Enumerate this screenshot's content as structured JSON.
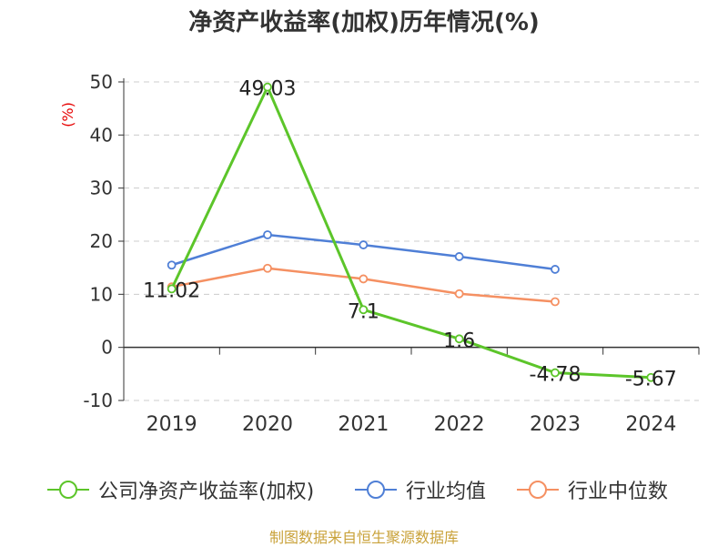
{
  "title": "净资产收益率(加权)历年情况(%)",
  "source": "制图数据来自恒生聚源数据库",
  "colors": {
    "company": "#5cc52a",
    "industry_avg": "#4f7fd6",
    "industry_median": "#f59062",
    "grid": "#cccccc",
    "axis": "#333333",
    "ylabel": "#e60000"
  },
  "chart_data": {
    "type": "line",
    "ylabel": "(%)",
    "xlabel": "",
    "ylim": [
      -10,
      50
    ],
    "yticks": [
      -10,
      0,
      10,
      20,
      30,
      40,
      50
    ],
    "categories": [
      "2019",
      "2020",
      "2021",
      "2022",
      "2023",
      "2024"
    ],
    "grid": true,
    "legend_position": "bottom",
    "series": [
      {
        "name": "公司净资产收益率(加权)",
        "color_key": "company",
        "values": [
          11.02,
          49.03,
          7.1,
          1.6,
          -4.78,
          -5.67
        ],
        "labels": [
          "11.02",
          "49.03",
          "7.1",
          "1.6",
          "-4.78",
          "-5.67"
        ]
      },
      {
        "name": "行业均值",
        "color_key": "industry_avg",
        "values": [
          15.5,
          21.2,
          19.3,
          17.1,
          14.7,
          null
        ]
      },
      {
        "name": "行业中位数",
        "color_key": "industry_median",
        "values": [
          11.4,
          14.9,
          12.9,
          10.1,
          8.6,
          null
        ]
      }
    ]
  }
}
